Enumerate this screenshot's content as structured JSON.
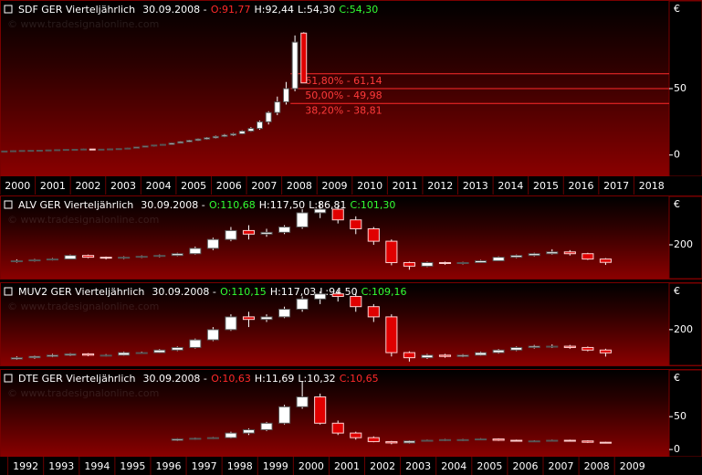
{
  "chart_data": [
    {
      "type": "candlestick",
      "header": [
        {
          "text": "SDF GER Vierteljährlich",
          "color": "#ffffff"
        },
        {
          "text": "30.09.2008 -",
          "color": "#ffffff"
        },
        {
          "text": "O:91,77",
          "color": "#ff2a2a"
        },
        {
          "text": "H:92,44",
          "color": "#ffffff"
        },
        {
          "text": "L:54,30",
          "color": "#ffffff"
        },
        {
          "text": "C:54,30",
          "color": "#33ff33"
        }
      ],
      "watermark": "© www.tradesignalonline.com",
      "y_label": "€",
      "xlim": [
        2000,
        2019
      ],
      "xticks": [
        2000,
        2001,
        2002,
        2003,
        2004,
        2005,
        2006,
        2007,
        2008,
        2009,
        2010,
        2011,
        2012,
        2013,
        2014,
        2015,
        2016,
        2017,
        2018
      ],
      "ylim": [
        -16,
        116
      ],
      "yticks": [
        0,
        50
      ],
      "x": [
        2000.125,
        2000.375,
        2000.625,
        2000.875,
        2001.125,
        2001.375,
        2001.625,
        2001.875,
        2002.125,
        2002.375,
        2002.625,
        2002.875,
        2003.125,
        2003.375,
        2003.625,
        2003.875,
        2004.125,
        2004.375,
        2004.625,
        2004.875,
        2005.125,
        2005.375,
        2005.625,
        2005.875,
        2006.125,
        2006.375,
        2006.625,
        2006.875,
        2007.125,
        2007.375,
        2007.625,
        2007.875,
        2008.125,
        2008.375,
        2008.625
      ],
      "ohlc": [
        [
          2.8,
          3.1,
          2.7,
          3
        ],
        [
          3,
          3.3,
          2.9,
          3.2
        ],
        [
          3.2,
          3.5,
          3.1,
          3.4
        ],
        [
          3.4,
          3.6,
          3.2,
          3.5
        ],
        [
          3.5,
          3.7,
          3.3,
          3.6
        ],
        [
          3.6,
          3.9,
          3.5,
          3.8
        ],
        [
          3.8,
          4.1,
          3.6,
          4
        ],
        [
          4,
          4.3,
          3.9,
          4.2
        ],
        [
          4.2,
          4.5,
          4.1,
          4.3
        ],
        [
          4.3,
          4.7,
          4.2,
          4.5
        ],
        [
          4.5,
          4.6,
          4,
          4.2
        ],
        [
          4.2,
          4.5,
          4,
          4.4
        ],
        [
          4.4,
          4.7,
          4.2,
          4.6
        ],
        [
          4.6,
          4.9,
          4.5,
          4.8
        ],
        [
          4.8,
          5.4,
          4.7,
          5.2
        ],
        [
          5.2,
          6.2,
          5.1,
          6
        ],
        [
          6,
          7,
          5.8,
          6.8
        ],
        [
          6.8,
          7.7,
          6.5,
          7.5
        ],
        [
          7.5,
          8.2,
          7.2,
          8
        ],
        [
          8,
          9.3,
          7.8,
          9
        ],
        [
          9,
          10.3,
          8.8,
          10
        ],
        [
          10,
          11.4,
          9.7,
          11
        ],
        [
          11,
          12.4,
          10.7,
          12
        ],
        [
          12,
          13.5,
          11.6,
          13
        ],
        [
          13,
          14.6,
          12.5,
          14
        ],
        [
          14,
          15.8,
          13.5,
          15
        ],
        [
          15,
          16.6,
          14.4,
          16
        ],
        [
          16,
          18.6,
          15.6,
          18
        ],
        [
          18,
          21,
          17.5,
          20
        ],
        [
          20,
          26,
          19,
          25
        ],
        [
          25,
          33,
          23,
          32
        ],
        [
          32,
          44,
          30,
          40
        ],
        [
          40,
          55,
          38,
          50
        ],
        [
          50,
          90,
          48,
          85
        ],
        [
          91.77,
          92.44,
          54.3,
          54.3
        ]
      ],
      "levels": [
        {
          "label": "61,80% - 61,14",
          "value": 61.14,
          "x": 2008.25
        },
        {
          "label": "50,00% - 49,98",
          "value": 49.98,
          "x": 2008.25
        },
        {
          "label": "38,20% - 38,81",
          "value": 38.81,
          "x": 2008.25
        }
      ]
    },
    {
      "type": "candlestick",
      "header": [
        {
          "text": "ALV GER Vierteljährlich",
          "color": "#ffffff"
        },
        {
          "text": "30.09.2008 -",
          "color": "#ffffff"
        },
        {
          "text": "O:110,68",
          "color": "#33ff33"
        },
        {
          "text": "H:117,50",
          "color": "#ffffff"
        },
        {
          "text": "L:86,81",
          "color": "#ffffff"
        },
        {
          "text": "C:101,30",
          "color": "#33ff33"
        }
      ],
      "watermark": "© www.tradesignalonline.com",
      "y_label": "€",
      "xlim": [
        1991.78,
        2010.53
      ],
      "ylim": [
        10,
        472
      ],
      "yticks": [
        200
      ],
      "x": [
        1992.25,
        1992.75,
        1993.25,
        1993.75,
        1994.25,
        1994.75,
        1995.25,
        1995.75,
        1996.25,
        1996.75,
        1997.25,
        1997.75,
        1998.25,
        1998.75,
        1999.25,
        1999.75,
        2000.25,
        2000.75,
        2001.25,
        2001.75,
        2002.25,
        2002.75,
        2003.25,
        2003.75,
        2004.25,
        2004.75,
        2005.25,
        2005.75,
        2006.25,
        2006.75,
        2007.25,
        2007.75,
        2008.25,
        2008.75
      ],
      "ohlc": [
        [
          105,
          118,
          100,
          110
        ],
        [
          110,
          120,
          106,
          115
        ],
        [
          115,
          125,
          112,
          120
        ],
        [
          120,
          145,
          118,
          140
        ],
        [
          140,
          145,
          125,
          130
        ],
        [
          130,
          134,
          118,
          125
        ],
        [
          125,
          135,
          120,
          130
        ],
        [
          130,
          140,
          126,
          135
        ],
        [
          135,
          145,
          130,
          140
        ],
        [
          140,
          155,
          136,
          150
        ],
        [
          150,
          190,
          145,
          180
        ],
        [
          180,
          240,
          170,
          230
        ],
        [
          230,
          300,
          220,
          280
        ],
        [
          280,
          310,
          230,
          260
        ],
        [
          260,
          290,
          245,
          270
        ],
        [
          270,
          310,
          260,
          300
        ],
        [
          300,
          400,
          290,
          380
        ],
        [
          380,
          440,
          350,
          400
        ],
        [
          400,
          420,
          320,
          340
        ],
        [
          340,
          360,
          260,
          290
        ],
        [
          290,
          300,
          200,
          220
        ],
        [
          220,
          230,
          85,
          100
        ],
        [
          100,
          105,
          60,
          80
        ],
        [
          80,
          105,
          75,
          100
        ],
        [
          100,
          105,
          88,
          95
        ],
        [
          95,
          104,
          90,
          100
        ],
        [
          100,
          115,
          98,
          110
        ],
        [
          110,
          135,
          108,
          130
        ],
        [
          130,
          145,
          125,
          140
        ],
        [
          140,
          155,
          135,
          150
        ],
        [
          150,
          175,
          145,
          160
        ],
        [
          160,
          170,
          140,
          150
        ],
        [
          150,
          155,
          115,
          120
        ],
        [
          120,
          125,
          86.81,
          101.3
        ]
      ]
    },
    {
      "type": "candlestick",
      "header": [
        {
          "text": "MUV2 GER Vierteljährlich",
          "color": "#ffffff"
        },
        {
          "text": "30.09.2008 -",
          "color": "#ffffff"
        },
        {
          "text": "O:110,15",
          "color": "#33ff33"
        },
        {
          "text": "H:117,03",
          "color": "#ffffff"
        },
        {
          "text": "L:94,50",
          "color": "#ffffff"
        },
        {
          "text": "C:109,16",
          "color": "#33ff33"
        }
      ],
      "watermark": "© www.tradesignalonline.com",
      "y_label": "€",
      "xlim": [
        1991.78,
        2010.53
      ],
      "ylim": [
        60,
        382
      ],
      "yticks": [
        200
      ],
      "x": [
        1992.25,
        1992.75,
        1993.25,
        1993.75,
        1994.25,
        1994.75,
        1995.25,
        1995.75,
        1996.25,
        1996.75,
        1997.25,
        1997.75,
        1998.25,
        1998.75,
        1999.25,
        1999.75,
        2000.25,
        2000.75,
        2001.25,
        2001.75,
        2002.25,
        2002.75,
        2003.25,
        2003.75,
        2004.25,
        2004.75,
        2005.25,
        2005.75,
        2006.25,
        2006.75,
        2007.25,
        2007.75,
        2008.25,
        2008.75
      ],
      "ohlc": [
        [
          85,
          95,
          82,
          90
        ],
        [
          90,
          98,
          86,
          95
        ],
        [
          95,
          105,
          92,
          100
        ],
        [
          100,
          108,
          97,
          105
        ],
        [
          105,
          108,
          96,
          100
        ],
        [
          100,
          104,
          95,
          100
        ],
        [
          100,
          114,
          98,
          110
        ],
        [
          110,
          114,
          105,
          110
        ],
        [
          110,
          124,
          108,
          120
        ],
        [
          120,
          134,
          116,
          130
        ],
        [
          130,
          165,
          126,
          160
        ],
        [
          160,
          210,
          155,
          200
        ],
        [
          200,
          260,
          195,
          250
        ],
        [
          250,
          270,
          210,
          240
        ],
        [
          240,
          260,
          230,
          250
        ],
        [
          250,
          290,
          245,
          280
        ],
        [
          280,
          330,
          270,
          320
        ],
        [
          320,
          350,
          300,
          340
        ],
        [
          340,
          355,
          310,
          330
        ],
        [
          330,
          345,
          270,
          290
        ],
        [
          290,
          300,
          230,
          250
        ],
        [
          250,
          260,
          95,
          110
        ],
        [
          110,
          115,
          75,
          90
        ],
        [
          90,
          105,
          85,
          100
        ],
        [
          100,
          105,
          90,
          95
        ],
        [
          95,
          104,
          92,
          100
        ],
        [
          100,
          114,
          98,
          110
        ],
        [
          110,
          124,
          106,
          120
        ],
        [
          120,
          134,
          116,
          130
        ],
        [
          130,
          140,
          126,
          135
        ],
        [
          135,
          142,
          128,
          135
        ],
        [
          135,
          140,
          125,
          130
        ],
        [
          130,
          134,
          115,
          120
        ],
        [
          120,
          125,
          94.5,
          109.16
        ]
      ]
    },
    {
      "type": "candlestick",
      "header": [
        {
          "text": "DTE GER Vierteljährlich",
          "color": "#ffffff"
        },
        {
          "text": "30.09.2008 -",
          "color": "#ffffff"
        },
        {
          "text": "O:10,63",
          "color": "#ff2a2a"
        },
        {
          "text": "H:11,69",
          "color": "#ffffff"
        },
        {
          "text": "L:10,32",
          "color": "#ffffff"
        },
        {
          "text": "C:10,65",
          "color": "#ff2a2a"
        }
      ],
      "watermark": "© www.tradesignalonline.com",
      "y_label": "€",
      "xlim": [
        1991.78,
        2010.53
      ],
      "xticks": [
        1992,
        1993,
        1994,
        1995,
        1996,
        1997,
        1998,
        1999,
        2000,
        2001,
        2002,
        2003,
        2004,
        2005,
        2006,
        2007,
        2008,
        2009
      ],
      "ylim": [
        -11,
        121
      ],
      "yticks": [
        0,
        50
      ],
      "x": [
        1996.75,
        1997.25,
        1997.75,
        1998.25,
        1998.75,
        1999.25,
        1999.75,
        2000.25,
        2000.75,
        2001.25,
        2001.75,
        2002.25,
        2002.75,
        2003.25,
        2003.75,
        2004.25,
        2004.75,
        2005.25,
        2005.75,
        2006.25,
        2006.75,
        2007.25,
        2007.75,
        2008.25,
        2008.75
      ],
      "ohlc": [
        [
          14,
          17,
          13,
          16
        ],
        [
          16,
          18,
          15,
          17
        ],
        [
          17,
          19,
          16,
          18
        ],
        [
          18,
          27,
          17,
          25
        ],
        [
          25,
          32,
          22,
          30
        ],
        [
          30,
          42,
          28,
          40
        ],
        [
          40,
          68,
          38,
          65
        ],
        [
          65,
          104,
          62,
          80
        ],
        [
          80,
          85,
          38,
          40
        ],
        [
          40,
          44,
          22,
          25
        ],
        [
          25,
          27,
          15,
          18
        ],
        [
          18,
          20,
          11,
          12
        ],
        [
          12,
          13,
          8,
          10
        ],
        [
          10,
          14,
          9,
          13
        ],
        [
          13,
          15,
          12,
          14
        ],
        [
          14,
          16,
          13,
          15
        ],
        [
          15,
          16,
          13,
          15
        ],
        [
          15,
          17,
          14,
          16
        ],
        [
          16,
          17,
          13,
          14
        ],
        [
          14,
          15,
          12,
          13
        ],
        [
          13,
          14,
          12,
          13
        ],
        [
          13,
          15,
          12,
          14
        ],
        [
          14,
          15,
          12,
          13
        ],
        [
          13,
          14,
          10,
          11
        ],
        [
          11,
          11.69,
          10.32,
          10.65
        ]
      ]
    }
  ]
}
